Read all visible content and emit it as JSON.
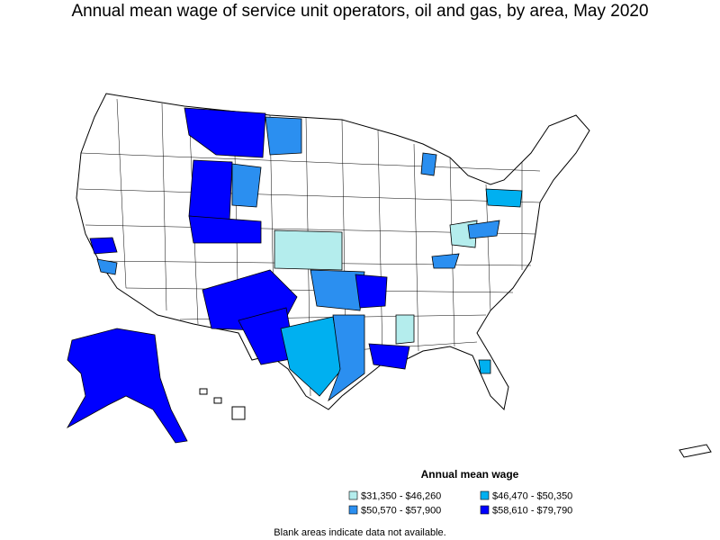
{
  "title": "Annual mean wage of service unit operators, oil and gas, by area, May 2020",
  "legend": {
    "title": "Annual mean wage",
    "items": [
      {
        "label": "$31,350 - $46,260",
        "color": "#b4eded"
      },
      {
        "label": "$46,470 - $50,350",
        "color": "#00b0f0"
      },
      {
        "label": "$50,570 - $57,900",
        "color": "#2b8ff0"
      },
      {
        "label": "$58,610 - $79,790",
        "color": "#0000ff"
      }
    ]
  },
  "note": "Blank areas indicate data not available."
}
